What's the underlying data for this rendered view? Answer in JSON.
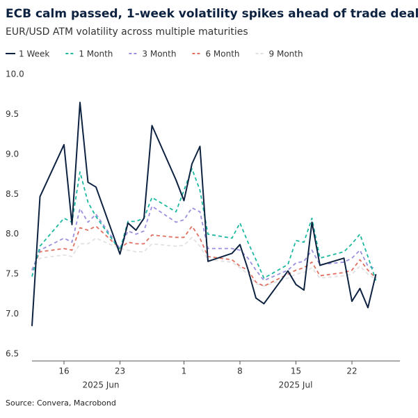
{
  "chart_data": {
    "type": "line",
    "title": "ECB calm passed, 1-week volatility spikes ahead of trade deal",
    "subtitle": "EUR/USD ATM volatility across multiple maturities",
    "source": "Source: Convera, Macrobond",
    "x": [
      "2025-06-12",
      "2025-06-13",
      "2025-06-16",
      "2025-06-17",
      "2025-06-18",
      "2025-06-19",
      "2025-06-20",
      "2025-06-23",
      "2025-06-24",
      "2025-06-25",
      "2025-06-26",
      "2025-06-27",
      "2025-06-30",
      "2025-07-01",
      "2025-07-02",
      "2025-07-03",
      "2025-07-04",
      "2025-07-07",
      "2025-07-08",
      "2025-07-09",
      "2025-07-10",
      "2025-07-11",
      "2025-07-14",
      "2025-07-15",
      "2025-07-16",
      "2025-07-17",
      "2025-07-18",
      "2025-07-21",
      "2025-07-22",
      "2025-07-23",
      "2025-07-24",
      "2025-07-25"
    ],
    "xlim": [
      "2025-06-12",
      "2025-07-28"
    ],
    "xticks": [
      {
        "value": "2025-06-16",
        "label": "16"
      },
      {
        "value": "2025-06-23",
        "label": "23"
      },
      {
        "value": "2025-07-01",
        "label": "1"
      },
      {
        "value": "2025-07-08",
        "label": "8"
      },
      {
        "value": "2025-07-15",
        "label": "15"
      },
      {
        "value": "2025-07-22",
        "label": "22"
      }
    ],
    "x_group_labels": [
      "2025 Jun",
      "2025 Jul"
    ],
    "ylim": [
      6.5,
      10.0
    ],
    "yticks": [
      6.5,
      {
        "value": 7,
        "label": "7.0"
      },
      7.5,
      {
        "value": 8,
        "label": "8.0"
      },
      8.5,
      {
        "value": 9,
        "label": "9.0"
      },
      9.5,
      {
        "value": 10,
        "label": "10.0"
      }
    ],
    "grid": false,
    "legend": "top",
    "series": [
      {
        "name": "1 Week",
        "color": "#0d2240",
        "dash": "solid",
        "values": [
          6.85,
          8.47,
          9.12,
          8.12,
          9.65,
          8.65,
          8.59,
          7.75,
          8.14,
          8.05,
          8.2,
          9.36,
          8.68,
          8.42,
          8.88,
          9.1,
          7.66,
          7.76,
          7.87,
          7.56,
          7.2,
          7.13,
          7.54,
          7.37,
          7.3,
          8.15,
          7.61,
          7.7,
          7.16,
          7.32,
          7.08,
          7.5
        ]
      },
      {
        "name": "1 Month",
        "color": "#1cb8a0",
        "dash": "dashed",
        "values": [
          7.47,
          7.85,
          8.2,
          8.15,
          8.78,
          8.4,
          8.22,
          7.8,
          8.16,
          8.16,
          8.2,
          8.46,
          8.28,
          8.55,
          8.82,
          8.55,
          8.0,
          7.95,
          8.14,
          7.9,
          7.68,
          7.45,
          7.62,
          7.92,
          7.9,
          8.2,
          7.7,
          7.78,
          7.88,
          8.0,
          7.72,
          7.42
        ]
      },
      {
        "name": "3 Month",
        "color": "#9c8fe0",
        "dash": "dashed",
        "values": [
          7.55,
          7.8,
          7.95,
          7.9,
          8.32,
          8.15,
          8.25,
          7.82,
          8.04,
          8.0,
          8.04,
          8.35,
          8.15,
          8.18,
          8.33,
          8.28,
          7.82,
          7.82,
          7.8,
          7.7,
          7.55,
          7.42,
          7.55,
          7.64,
          7.66,
          7.8,
          7.62,
          7.65,
          7.7,
          7.8,
          7.6,
          7.57
        ]
      },
      {
        "name": "6 Month",
        "color": "#e07060",
        "dash": "dashed",
        "values": [
          7.55,
          7.78,
          7.82,
          7.8,
          8.08,
          8.05,
          8.1,
          7.82,
          7.9,
          7.88,
          7.88,
          7.99,
          7.96,
          7.96,
          8.1,
          7.95,
          7.72,
          7.68,
          7.6,
          7.55,
          7.4,
          7.35,
          7.5,
          7.55,
          7.58,
          7.65,
          7.48,
          7.52,
          7.55,
          7.68,
          7.55,
          7.45
        ]
      },
      {
        "name": "9 Month",
        "color": "#e2e0e0",
        "dash": "dashed",
        "values": [
          7.55,
          7.7,
          7.74,
          7.72,
          7.88,
          7.88,
          7.95,
          7.82,
          7.8,
          7.78,
          7.78,
          7.88,
          7.85,
          7.86,
          7.96,
          7.85,
          7.68,
          7.65,
          7.58,
          7.5,
          7.38,
          7.35,
          7.45,
          7.5,
          7.52,
          7.58,
          7.45,
          7.48,
          7.5,
          7.6,
          7.5,
          7.43
        ]
      }
    ]
  }
}
